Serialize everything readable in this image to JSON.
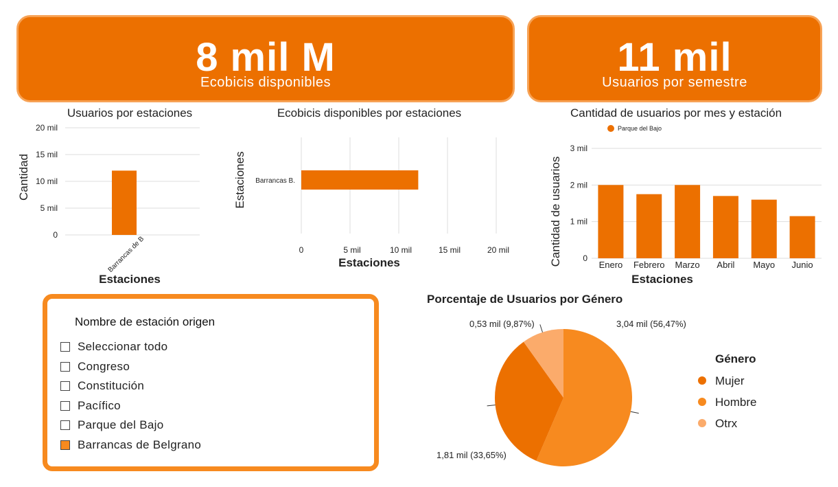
{
  "kpis": [
    {
      "value": "8 mil M",
      "label": "Ecobicis disponibles"
    },
    {
      "value": "11 mil",
      "label": "Usuarios por semestre"
    }
  ],
  "colors": {
    "primary": "#ec7000",
    "mid": "#f78a1f",
    "light": "#fbab6b",
    "grid": "#dddddd"
  },
  "filter": {
    "title": "Nombre de estación origen",
    "options": [
      {
        "label": "Seleccionar todo",
        "checked": false
      },
      {
        "label": "Congreso",
        "checked": false
      },
      {
        "label": "Constitución",
        "checked": false
      },
      {
        "label": "Pacífico",
        "checked": false
      },
      {
        "label": "Parque del Bajo",
        "checked": false
      },
      {
        "label": "Barrancas de Belgrano",
        "checked": true
      }
    ]
  },
  "chart_data": [
    {
      "type": "bar",
      "title": "Usuarios por estaciones",
      "xlabel": "Estaciones",
      "ylabel": "Cantidad",
      "categories": [
        "Barrancas de B"
      ],
      "values": [
        12000
      ],
      "ylim": [
        0,
        20000
      ],
      "yticks": [
        "0",
        "5 mil",
        "10 mil",
        "15 mil",
        "20 mil"
      ],
      "grid": true
    },
    {
      "type": "bar",
      "orientation": "horizontal",
      "title": "Ecobicis disponibles por estaciones",
      "xlabel": "Estaciones",
      "ylabel": "Estaciones",
      "categories": [
        "Barrancas B."
      ],
      "values": [
        12000
      ],
      "xlim": [
        0,
        20000
      ],
      "xticks": [
        "0",
        "5 mil",
        "10 mil",
        "15 mil",
        "20 mil"
      ],
      "grid": true
    },
    {
      "type": "bar",
      "title": "Cantidad de usuarios por mes y estación",
      "xlabel": "Estaciones",
      "ylabel": "Cantidad de usuarios",
      "categories": [
        "Enero",
        "Febrero",
        "Marzo",
        "Abril",
        "Mayo",
        "Junio"
      ],
      "series": [
        {
          "name": "Parque del Bajo",
          "values": [
            2000,
            1750,
            2000,
            1700,
            1600,
            1150
          ]
        }
      ],
      "ylim": [
        0,
        3000
      ],
      "yticks": [
        "0",
        "1 mil",
        "2 mil",
        "3 mil"
      ],
      "legend": "top-left",
      "grid": true
    },
    {
      "type": "pie",
      "title": "Porcentaje de Usuarios por Género",
      "legend_title": "Género",
      "slices": [
        {
          "name": "Hombre",
          "value": 3.04,
          "percent": 56.47,
          "label": "3,04 mil (56,47%)",
          "color": "#f78a1f"
        },
        {
          "name": "Mujer",
          "value": 1.81,
          "percent": 33.65,
          "label": "1,81 mil (33,65%)",
          "color": "#ec7000"
        },
        {
          "name": "Otrx",
          "value": 0.53,
          "percent": 9.87,
          "label": "0,53 mil (9,87%)",
          "color": "#fbab6b"
        }
      ],
      "legend_entries": [
        {
          "name": "Mujer",
          "color": "#ec7000"
        },
        {
          "name": "Hombre",
          "color": "#f78a1f"
        },
        {
          "name": "Otrx",
          "color": "#fbab6b"
        }
      ]
    }
  ]
}
